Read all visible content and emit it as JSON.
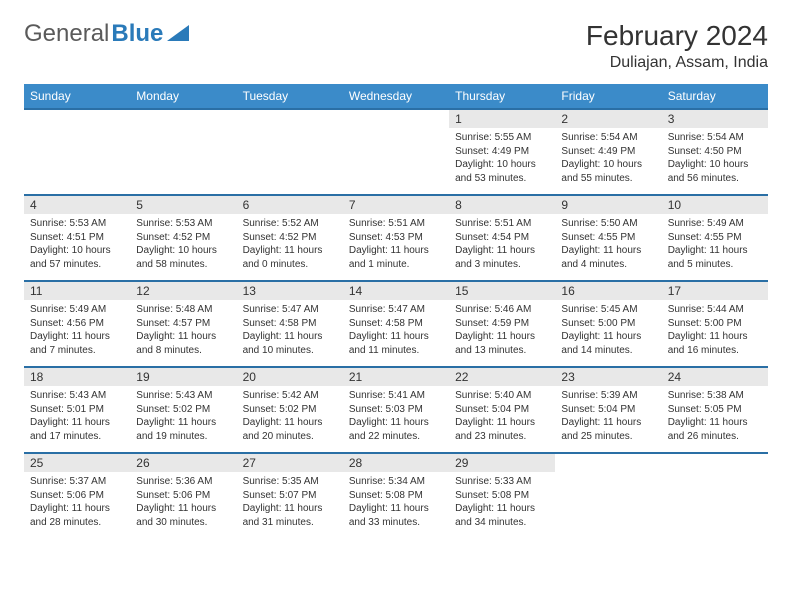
{
  "logo": {
    "text_gray": "General",
    "text_blue": "Blue"
  },
  "header": {
    "month_title": "February 2024",
    "location": "Duliajan, Assam, India"
  },
  "colors": {
    "header_bg": "#3b8bc9",
    "header_text": "#ffffff",
    "row_border": "#2a6fa5",
    "daynum_bg": "#e8e8e8",
    "logo_gray": "#5a5a5a",
    "logo_blue": "#2a7ab9"
  },
  "day_labels": [
    "Sunday",
    "Monday",
    "Tuesday",
    "Wednesday",
    "Thursday",
    "Friday",
    "Saturday"
  ],
  "weeks": [
    [
      null,
      null,
      null,
      null,
      {
        "n": "1",
        "sunrise": "Sunrise: 5:55 AM",
        "sunset": "Sunset: 4:49 PM",
        "daylight1": "Daylight: 10 hours",
        "daylight2": "and 53 minutes."
      },
      {
        "n": "2",
        "sunrise": "Sunrise: 5:54 AM",
        "sunset": "Sunset: 4:49 PM",
        "daylight1": "Daylight: 10 hours",
        "daylight2": "and 55 minutes."
      },
      {
        "n": "3",
        "sunrise": "Sunrise: 5:54 AM",
        "sunset": "Sunset: 4:50 PM",
        "daylight1": "Daylight: 10 hours",
        "daylight2": "and 56 minutes."
      }
    ],
    [
      {
        "n": "4",
        "sunrise": "Sunrise: 5:53 AM",
        "sunset": "Sunset: 4:51 PM",
        "daylight1": "Daylight: 10 hours",
        "daylight2": "and 57 minutes."
      },
      {
        "n": "5",
        "sunrise": "Sunrise: 5:53 AM",
        "sunset": "Sunset: 4:52 PM",
        "daylight1": "Daylight: 10 hours",
        "daylight2": "and 58 minutes."
      },
      {
        "n": "6",
        "sunrise": "Sunrise: 5:52 AM",
        "sunset": "Sunset: 4:52 PM",
        "daylight1": "Daylight: 11 hours",
        "daylight2": "and 0 minutes."
      },
      {
        "n": "7",
        "sunrise": "Sunrise: 5:51 AM",
        "sunset": "Sunset: 4:53 PM",
        "daylight1": "Daylight: 11 hours",
        "daylight2": "and 1 minute."
      },
      {
        "n": "8",
        "sunrise": "Sunrise: 5:51 AM",
        "sunset": "Sunset: 4:54 PM",
        "daylight1": "Daylight: 11 hours",
        "daylight2": "and 3 minutes."
      },
      {
        "n": "9",
        "sunrise": "Sunrise: 5:50 AM",
        "sunset": "Sunset: 4:55 PM",
        "daylight1": "Daylight: 11 hours",
        "daylight2": "and 4 minutes."
      },
      {
        "n": "10",
        "sunrise": "Sunrise: 5:49 AM",
        "sunset": "Sunset: 4:55 PM",
        "daylight1": "Daylight: 11 hours",
        "daylight2": "and 5 minutes."
      }
    ],
    [
      {
        "n": "11",
        "sunrise": "Sunrise: 5:49 AM",
        "sunset": "Sunset: 4:56 PM",
        "daylight1": "Daylight: 11 hours",
        "daylight2": "and 7 minutes."
      },
      {
        "n": "12",
        "sunrise": "Sunrise: 5:48 AM",
        "sunset": "Sunset: 4:57 PM",
        "daylight1": "Daylight: 11 hours",
        "daylight2": "and 8 minutes."
      },
      {
        "n": "13",
        "sunrise": "Sunrise: 5:47 AM",
        "sunset": "Sunset: 4:58 PM",
        "daylight1": "Daylight: 11 hours",
        "daylight2": "and 10 minutes."
      },
      {
        "n": "14",
        "sunrise": "Sunrise: 5:47 AM",
        "sunset": "Sunset: 4:58 PM",
        "daylight1": "Daylight: 11 hours",
        "daylight2": "and 11 minutes."
      },
      {
        "n": "15",
        "sunrise": "Sunrise: 5:46 AM",
        "sunset": "Sunset: 4:59 PM",
        "daylight1": "Daylight: 11 hours",
        "daylight2": "and 13 minutes."
      },
      {
        "n": "16",
        "sunrise": "Sunrise: 5:45 AM",
        "sunset": "Sunset: 5:00 PM",
        "daylight1": "Daylight: 11 hours",
        "daylight2": "and 14 minutes."
      },
      {
        "n": "17",
        "sunrise": "Sunrise: 5:44 AM",
        "sunset": "Sunset: 5:00 PM",
        "daylight1": "Daylight: 11 hours",
        "daylight2": "and 16 minutes."
      }
    ],
    [
      {
        "n": "18",
        "sunrise": "Sunrise: 5:43 AM",
        "sunset": "Sunset: 5:01 PM",
        "daylight1": "Daylight: 11 hours",
        "daylight2": "and 17 minutes."
      },
      {
        "n": "19",
        "sunrise": "Sunrise: 5:43 AM",
        "sunset": "Sunset: 5:02 PM",
        "daylight1": "Daylight: 11 hours",
        "daylight2": "and 19 minutes."
      },
      {
        "n": "20",
        "sunrise": "Sunrise: 5:42 AM",
        "sunset": "Sunset: 5:02 PM",
        "daylight1": "Daylight: 11 hours",
        "daylight2": "and 20 minutes."
      },
      {
        "n": "21",
        "sunrise": "Sunrise: 5:41 AM",
        "sunset": "Sunset: 5:03 PM",
        "daylight1": "Daylight: 11 hours",
        "daylight2": "and 22 minutes."
      },
      {
        "n": "22",
        "sunrise": "Sunrise: 5:40 AM",
        "sunset": "Sunset: 5:04 PM",
        "daylight1": "Daylight: 11 hours",
        "daylight2": "and 23 minutes."
      },
      {
        "n": "23",
        "sunrise": "Sunrise: 5:39 AM",
        "sunset": "Sunset: 5:04 PM",
        "daylight1": "Daylight: 11 hours",
        "daylight2": "and 25 minutes."
      },
      {
        "n": "24",
        "sunrise": "Sunrise: 5:38 AM",
        "sunset": "Sunset: 5:05 PM",
        "daylight1": "Daylight: 11 hours",
        "daylight2": "and 26 minutes."
      }
    ],
    [
      {
        "n": "25",
        "sunrise": "Sunrise: 5:37 AM",
        "sunset": "Sunset: 5:06 PM",
        "daylight1": "Daylight: 11 hours",
        "daylight2": "and 28 minutes."
      },
      {
        "n": "26",
        "sunrise": "Sunrise: 5:36 AM",
        "sunset": "Sunset: 5:06 PM",
        "daylight1": "Daylight: 11 hours",
        "daylight2": "and 30 minutes."
      },
      {
        "n": "27",
        "sunrise": "Sunrise: 5:35 AM",
        "sunset": "Sunset: 5:07 PM",
        "daylight1": "Daylight: 11 hours",
        "daylight2": "and 31 minutes."
      },
      {
        "n": "28",
        "sunrise": "Sunrise: 5:34 AM",
        "sunset": "Sunset: 5:08 PM",
        "daylight1": "Daylight: 11 hours",
        "daylight2": "and 33 minutes."
      },
      {
        "n": "29",
        "sunrise": "Sunrise: 5:33 AM",
        "sunset": "Sunset: 5:08 PM",
        "daylight1": "Daylight: 11 hours",
        "daylight2": "and 34 minutes."
      },
      null,
      null
    ]
  ]
}
